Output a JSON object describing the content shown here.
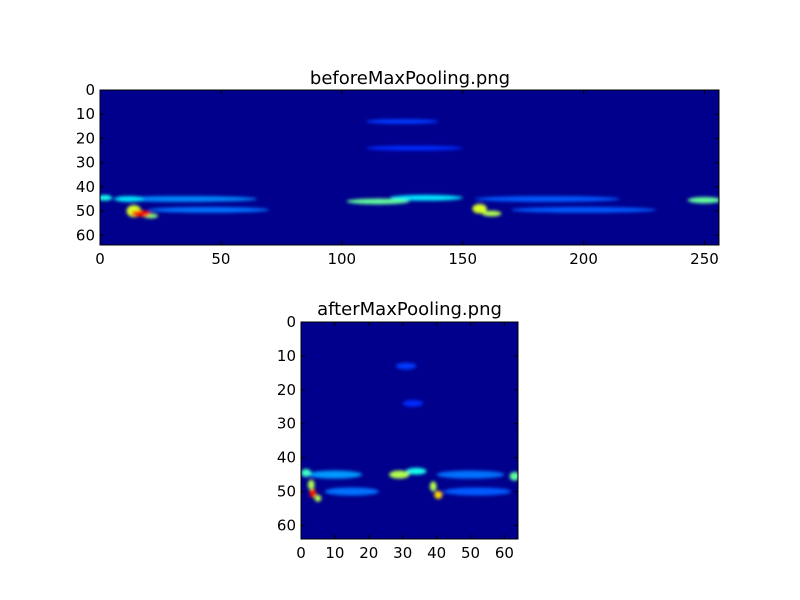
{
  "chart_data": [
    {
      "type": "heatmap",
      "title": "beforeMaxPooling.png",
      "colormap": "jet",
      "background_color": "#00008c",
      "xlim": [
        0,
        256
      ],
      "ylim": [
        64,
        0
      ],
      "xticks": [
        0,
        50,
        100,
        150,
        200,
        250
      ],
      "yticks": [
        0,
        10,
        20,
        30,
        40,
        50,
        60
      ],
      "grid": false,
      "hotspots": [
        {
          "x": 2,
          "y": 44.5,
          "rx": 3,
          "ry": 1.2,
          "v": 0.35
        },
        {
          "x": 12,
          "y": 45,
          "rx": 6,
          "ry": 1.2,
          "v": 0.3
        },
        {
          "x": 35,
          "y": 45,
          "rx": 30,
          "ry": 1.2,
          "v": 0.18
        },
        {
          "x": 14,
          "y": 50,
          "rx": 3,
          "ry": 2.5,
          "v": 0.6
        },
        {
          "x": 17,
          "y": 51,
          "rx": 4,
          "ry": 1.3,
          "v": 0.95
        },
        {
          "x": 21,
          "y": 52,
          "rx": 3,
          "ry": 1,
          "v": 0.5
        },
        {
          "x": 45,
          "y": 49.5,
          "rx": 25,
          "ry": 1.2,
          "v": 0.15
        },
        {
          "x": 115,
          "y": 46,
          "rx": 13,
          "ry": 1.2,
          "v": 0.45
        },
        {
          "x": 135,
          "y": 44.5,
          "rx": 15,
          "ry": 1.2,
          "v": 0.3
        },
        {
          "x": 157,
          "y": 49,
          "rx": 3,
          "ry": 2,
          "v": 0.6
        },
        {
          "x": 162,
          "y": 51,
          "rx": 4,
          "ry": 1.2,
          "v": 0.55
        },
        {
          "x": 200,
          "y": 49.5,
          "rx": 30,
          "ry": 1.2,
          "v": 0.12
        },
        {
          "x": 185,
          "y": 45,
          "rx": 30,
          "ry": 1.2,
          "v": 0.12
        },
        {
          "x": 250,
          "y": 45.5,
          "rx": 7,
          "ry": 1.3,
          "v": 0.45
        },
        {
          "x": 125,
          "y": 13,
          "rx": 15,
          "ry": 1,
          "v": 0.08
        },
        {
          "x": 130,
          "y": 24,
          "rx": 20,
          "ry": 1,
          "v": 0.06
        }
      ]
    },
    {
      "type": "heatmap",
      "title": "afterMaxPooling.png",
      "colormap": "jet",
      "background_color": "#00008c",
      "xlim": [
        0,
        64
      ],
      "ylim": [
        64,
        0
      ],
      "xticks": [
        0,
        10,
        20,
        30,
        40,
        50,
        60
      ],
      "yticks": [
        0,
        10,
        20,
        30,
        40,
        50,
        60
      ],
      "grid": false,
      "hotspots": [
        {
          "x": 1.5,
          "y": 44.5,
          "rx": 1.5,
          "ry": 1.2,
          "v": 0.4
        },
        {
          "x": 10,
          "y": 45,
          "rx": 8,
          "ry": 1.2,
          "v": 0.2
        },
        {
          "x": 3,
          "y": 48,
          "rx": 1,
          "ry": 1.5,
          "v": 0.55
        },
        {
          "x": 3.5,
          "y": 50.5,
          "rx": 1,
          "ry": 1.3,
          "v": 0.95
        },
        {
          "x": 5,
          "y": 52,
          "rx": 1,
          "ry": 1,
          "v": 0.55
        },
        {
          "x": 15,
          "y": 50,
          "rx": 8,
          "ry": 1.2,
          "v": 0.15
        },
        {
          "x": 29,
          "y": 45,
          "rx": 3,
          "ry": 1.2,
          "v": 0.55
        },
        {
          "x": 34,
          "y": 44,
          "rx": 3,
          "ry": 1,
          "v": 0.35
        },
        {
          "x": 39,
          "y": 48.5,
          "rx": 1,
          "ry": 1.5,
          "v": 0.55
        },
        {
          "x": 40.5,
          "y": 51,
          "rx": 1.2,
          "ry": 1.2,
          "v": 0.7
        },
        {
          "x": 50,
          "y": 45,
          "rx": 10,
          "ry": 1.2,
          "v": 0.15
        },
        {
          "x": 52,
          "y": 50,
          "rx": 10,
          "ry": 1.2,
          "v": 0.12
        },
        {
          "x": 63,
          "y": 45.5,
          "rx": 1.5,
          "ry": 1.3,
          "v": 0.45
        },
        {
          "x": 31,
          "y": 13,
          "rx": 3,
          "ry": 1,
          "v": 0.08
        },
        {
          "x": 33,
          "y": 24,
          "rx": 3,
          "ry": 1,
          "v": 0.06
        }
      ]
    }
  ]
}
